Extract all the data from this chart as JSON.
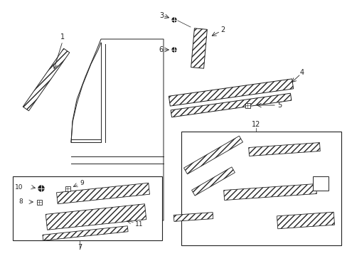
{
  "figsize": [
    4.89,
    3.6
  ],
  "dpi": 100,
  "bg_color": "#ffffff",
  "gray": "#222222",
  "lw": 0.7
}
